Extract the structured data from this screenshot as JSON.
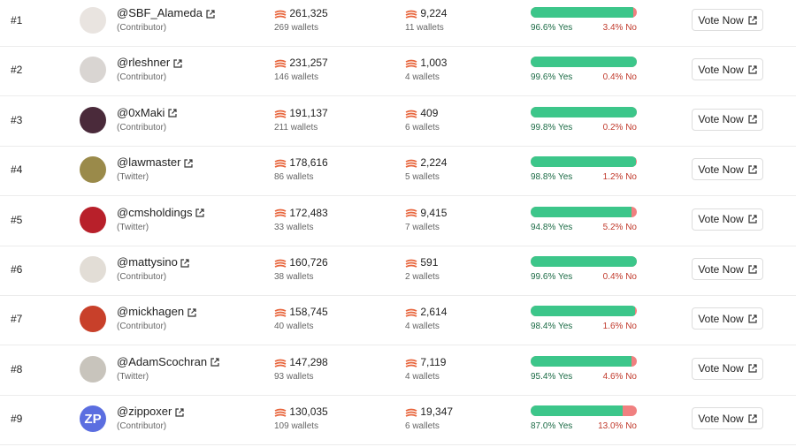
{
  "rows": [
    {
      "rank": "#1",
      "handle": "@SBF_Alameda",
      "role": "(Contributor)",
      "for_votes": "261,325",
      "for_wallets": "269 wallets",
      "against_votes": "9,224",
      "against_wallets": "11 wallets",
      "yes": 96.6,
      "yes_label": "96.6% Yes",
      "no": 3.4,
      "no_label": "3.4% No",
      "button": "Vote Now",
      "avatar_color": "#e9e4e0"
    },
    {
      "rank": "#2",
      "handle": "@rleshner",
      "role": "(Contributor)",
      "for_votes": "231,257",
      "for_wallets": "146 wallets",
      "against_votes": "1,003",
      "against_wallets": "4 wallets",
      "yes": 99.6,
      "yes_label": "99.6% Yes",
      "no": 0.4,
      "no_label": "0.4% No",
      "button": "Vote Now",
      "avatar_color": "#d9d5d2"
    },
    {
      "rank": "#3",
      "handle": "@0xMaki",
      "role": "(Contributor)",
      "for_votes": "191,137",
      "for_wallets": "211 wallets",
      "against_votes": "409",
      "against_wallets": "6 wallets",
      "yes": 99.8,
      "yes_label": "99.8% Yes",
      "no": 0.2,
      "no_label": "0.2% No",
      "button": "Vote Now",
      "avatar_color": "#4a2a3a"
    },
    {
      "rank": "#4",
      "handle": "@lawmaster",
      "role": "(Twitter)",
      "for_votes": "178,616",
      "for_wallets": "86 wallets",
      "against_votes": "2,224",
      "against_wallets": "5 wallets",
      "yes": 98.8,
      "yes_label": "98.8% Yes",
      "no": 1.2,
      "no_label": "1.2% No",
      "button": "Vote Now",
      "avatar_color": "#9a8a4a"
    },
    {
      "rank": "#5",
      "handle": "@cmsholdings",
      "role": "(Twitter)",
      "for_votes": "172,483",
      "for_wallets": "33 wallets",
      "against_votes": "9,415",
      "against_wallets": "7 wallets",
      "yes": 94.8,
      "yes_label": "94.8% Yes",
      "no": 5.2,
      "no_label": "5.2% No",
      "button": "Vote Now",
      "avatar_color": "#b8202a"
    },
    {
      "rank": "#6",
      "handle": "@mattysino",
      "role": "(Contributor)",
      "for_votes": "160,726",
      "for_wallets": "38 wallets",
      "against_votes": "591",
      "against_wallets": "2 wallets",
      "yes": 99.6,
      "yes_label": "99.6% Yes",
      "no": 0.4,
      "no_label": "0.4% No",
      "button": "Vote Now",
      "avatar_color": "#e2ddd6"
    },
    {
      "rank": "#7",
      "handle": "@mickhagen",
      "role": "(Contributor)",
      "for_votes": "158,745",
      "for_wallets": "40 wallets",
      "against_votes": "2,614",
      "against_wallets": "4 wallets",
      "yes": 98.4,
      "yes_label": "98.4% Yes",
      "no": 1.6,
      "no_label": "1.6% No",
      "button": "Vote Now",
      "avatar_color": "#c8402a"
    },
    {
      "rank": "#8",
      "handle": "@AdamScochran",
      "role": "(Twitter)",
      "for_votes": "147,298",
      "for_wallets": "93 wallets",
      "against_votes": "7,119",
      "against_wallets": "4 wallets",
      "yes": 95.4,
      "yes_label": "95.4% Yes",
      "no": 4.6,
      "no_label": "4.6% No",
      "button": "Vote Now",
      "avatar_color": "#c8c4bc"
    },
    {
      "rank": "#9",
      "handle": "@zippoxer",
      "role": "(Contributor)",
      "for_votes": "130,035",
      "for_wallets": "109 wallets",
      "against_votes": "19,347",
      "against_wallets": "6 wallets",
      "yes": 87.0,
      "yes_label": "87.0% Yes",
      "no": 13.0,
      "no_label": "13.0% No",
      "button": "Vote Now",
      "avatar_color": "#5b6ee0",
      "avatar_text": "ZP"
    }
  ]
}
